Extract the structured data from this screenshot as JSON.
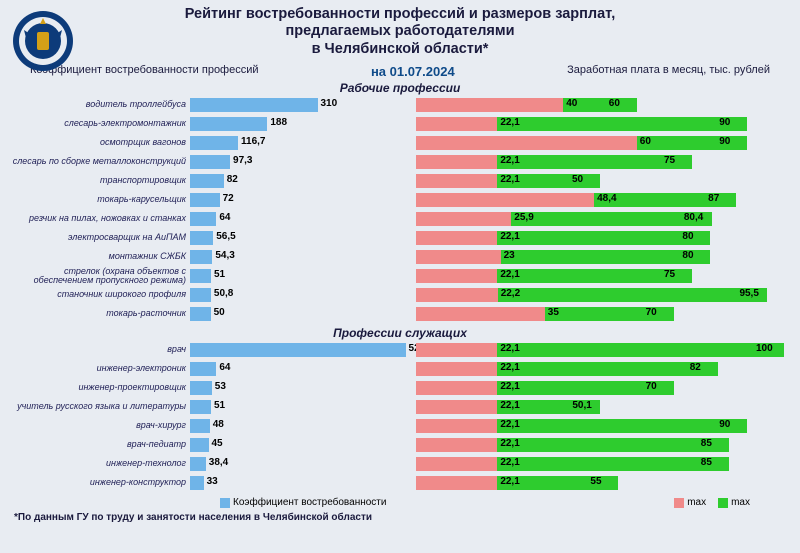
{
  "title_lines": [
    "Рейтинг востребованности профессий и размеров зарплат,",
    "предлагаемых работодателями",
    "в Челябинской области*"
  ],
  "subheader": {
    "left": "Коэффициент востребованности профессий",
    "date": "на 01.07.2024",
    "right": "Заработная плата в месяц, тыс. рублей"
  },
  "section1_title": "Рабочие профессии",
  "section2_title": "Профессии служащих",
  "coef_chart": {
    "max_scale": 530,
    "bar_color": "#6fb4e8"
  },
  "salary_chart": {
    "max_scale": 100,
    "green": "#2ecc2e",
    "red": "#f08a8a"
  },
  "workers": [
    {
      "label": "водитель троллейбуса",
      "coef": 310,
      "min": 40,
      "max": 60
    },
    {
      "label": "слесарь-электромонтажник",
      "coef": 188,
      "min": 22.1,
      "max": 90
    },
    {
      "label": "осмотрщик вагонов",
      "coef": 116.7,
      "min": 60,
      "max": 90
    },
    {
      "label": "слесарь по сборке металлоконструкций",
      "coef": 97.3,
      "min": 22.1,
      "max": 75
    },
    {
      "label": "транспортировщик",
      "coef": 82,
      "min": 22.1,
      "max": 50
    },
    {
      "label": "токарь-карусельщик",
      "coef": 72,
      "min": 48.4,
      "max": 87
    },
    {
      "label": "резчик на пилах, ножовках и станках",
      "coef": 64,
      "min": 25.9,
      "max": 80.4
    },
    {
      "label": "электросварщик на АиПАМ",
      "coef": 56.5,
      "min": 22.1,
      "max": 80
    },
    {
      "label": "монтажник СЖБК",
      "coef": 54.3,
      "min": 23,
      "max": 80
    },
    {
      "label": "стрелок (охрана объектов с обеспечением пропускного режима)",
      "coef": 51,
      "min": 22.1,
      "max": 75
    },
    {
      "label": "станочник широкого профиля",
      "coef": 50.8,
      "min": 22.2,
      "max": 95.5
    },
    {
      "label": "токарь-расточник",
      "coef": 50,
      "min": 35,
      "max": 70
    }
  ],
  "employees": [
    {
      "label": "врач",
      "coef": 524,
      "min": 22.1,
      "max": 100
    },
    {
      "label": "инженер-электроник",
      "coef": 64,
      "min": 22.1,
      "max": 82
    },
    {
      "label": "инженер-проектировщик",
      "coef": 53,
      "min": 22.1,
      "max": 70
    },
    {
      "label": "учитель русского языка и литературы",
      "coef": 51,
      "min": 22.1,
      "max": 50.1
    },
    {
      "label": "врач-хирург",
      "coef": 48,
      "min": 22.1,
      "max": 90
    },
    {
      "label": "врач-педиатр",
      "coef": 45,
      "min": 22.1,
      "max": 85
    },
    {
      "label": "инженер-технолог",
      "coef": 38.4,
      "min": 22.1,
      "max": 85
    },
    {
      "label": "инженер-конструктор",
      "coef": 33,
      "min": 22.1,
      "max": 55
    }
  ],
  "legend": {
    "coef": "Коэффициент востребованности",
    "min": "max",
    "max": "max"
  },
  "footnote": "*По данным ГУ по труду и занятости населения в Челябинской области",
  "colors": {
    "bg": "#e8ecf2",
    "title": "#1a1a3d",
    "label": "#222258"
  }
}
